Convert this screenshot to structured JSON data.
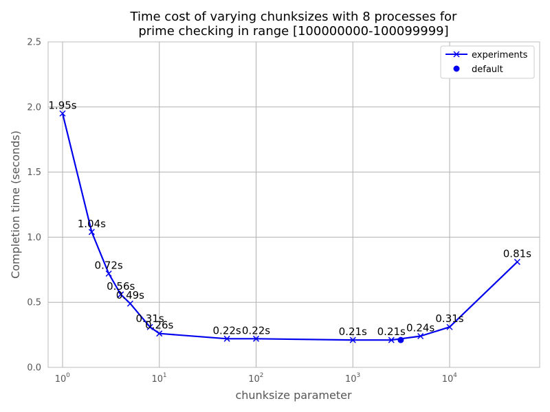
{
  "chart_data": {
    "type": "line",
    "title_lines": [
      "Time cost of varying chunksizes with 8 processes for",
      "prime checking in range [100000000-100099999]"
    ],
    "xlabel": "chunksize parameter",
    "ylabel": "Completion time (seconds)",
    "x_scale": "log",
    "x_ticks": [
      {
        "base": "10",
        "exp": "0",
        "value": 1
      },
      {
        "base": "10",
        "exp": "1",
        "value": 10
      },
      {
        "base": "10",
        "exp": "2",
        "value": 100
      },
      {
        "base": "10",
        "exp": "3",
        "value": 1000
      },
      {
        "base": "10",
        "exp": "4",
        "value": 10000
      }
    ],
    "ylim": [
      0,
      2.5
    ],
    "y_ticks": [
      "0.0",
      "0.5",
      "1.0",
      "1.5",
      "2.0",
      "2.5"
    ],
    "grid": true,
    "legend_position": "top-right",
    "series": [
      {
        "name": "experiments",
        "color": "#0000ee",
        "marker": "x",
        "x": [
          1,
          2,
          3,
          4,
          5,
          8,
          10,
          50,
          100,
          1000,
          2500,
          5000,
          10000,
          50000
        ],
        "y": [
          1.95,
          1.04,
          0.72,
          0.56,
          0.49,
          0.31,
          0.26,
          0.22,
          0.22,
          0.21,
          0.21,
          0.24,
          0.31,
          0.81
        ],
        "labels": [
          "1.95s",
          "1.04s",
          "0.72s",
          "0.56s",
          "0.49s",
          "0.31s",
          "0.26s",
          "0.22s",
          "0.22s",
          "0.21s",
          "0.21s",
          "0.24s",
          "0.31s",
          "0.81s"
        ]
      },
      {
        "name": "default",
        "color": "#0000ee",
        "marker": "o",
        "x": [
          3125
        ],
        "y": [
          0.21
        ]
      }
    ]
  }
}
